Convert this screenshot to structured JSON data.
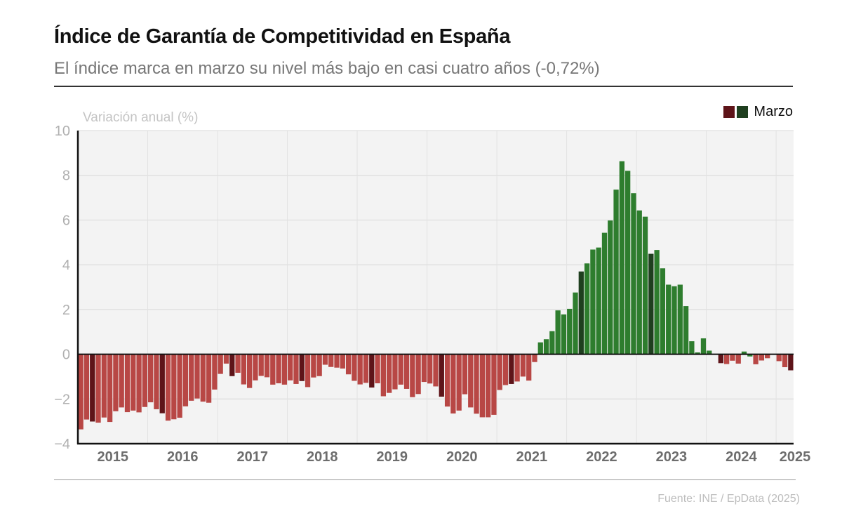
{
  "header": {
    "title": "Índice de Garantía de Competitividad en España",
    "subtitle": "El índice marca en marzo su nivel más bajo en casi cuatro años (-0,72%)"
  },
  "legend": {
    "label": "Marzo",
    "swatch_negative": "#5e1419",
    "swatch_positive": "#1f3f1f"
  },
  "footer": {
    "source": "Fuente: INE / EpData (2025)"
  },
  "colors": {
    "negative": "#b84745",
    "negative_march": "#5e1419",
    "positive": "#2e7d2e",
    "positive_march": "#1f3f1f",
    "plot_bg": "#f3f3f3",
    "grid": "#d8d8d8",
    "tick_label": "#b0b0b0",
    "year_label": "#6d6d6d"
  },
  "chart_data": {
    "type": "bar",
    "title": "Índice de Garantía de Competitividad en España",
    "subtitle": "El índice marca en marzo su nivel más bajo en casi cuatro años (-0,72%)",
    "ylabel": "Variación anual (%)",
    "xlabel": "",
    "ylim": [
      -4,
      10
    ],
    "yticks": [
      10,
      8,
      6,
      4,
      2,
      0,
      -2,
      -4
    ],
    "ytick_labels": [
      "10",
      "8",
      "6",
      "4",
      "2",
      "0",
      "−2",
      "−4"
    ],
    "grid": true,
    "legend": {
      "position": "top-right",
      "entries": [
        "Marzo"
      ]
    },
    "start": "2015-01",
    "frequency": "monthly",
    "highlight_month": 3,
    "year_labels": [
      "2015",
      "2016",
      "2017",
      "2018",
      "2019",
      "2020",
      "2021",
      "2022",
      "2023",
      "2024",
      "2025"
    ],
    "series": [
      {
        "name": "Variación anual (%)",
        "values": [
          -3.36,
          -2.92,
          -3.01,
          -3.06,
          -2.83,
          -3.03,
          -2.55,
          -2.38,
          -2.59,
          -2.52,
          -2.6,
          -2.36,
          -2.15,
          -2.46,
          -2.64,
          -2.97,
          -2.91,
          -2.84,
          -2.33,
          -2.08,
          -1.98,
          -2.12,
          -2.17,
          -1.58,
          -0.88,
          -0.42,
          -0.98,
          -0.83,
          -1.35,
          -1.51,
          -1.17,
          -0.97,
          -1.03,
          -1.36,
          -1.3,
          -1.36,
          -1.17,
          -1.33,
          -1.2,
          -1.47,
          -1.04,
          -0.98,
          -0.47,
          -0.57,
          -0.6,
          -0.64,
          -0.9,
          -1.19,
          -1.35,
          -1.28,
          -1.49,
          -1.3,
          -1.88,
          -1.73,
          -1.57,
          -1.36,
          -1.55,
          -1.92,
          -1.78,
          -1.24,
          -1.31,
          -1.44,
          -1.9,
          -2.34,
          -2.65,
          -2.52,
          -1.79,
          -2.38,
          -2.66,
          -2.82,
          -2.82,
          -2.71,
          -1.6,
          -1.38,
          -1.33,
          -1.22,
          -1.0,
          -1.18,
          -0.35,
          0.53,
          0.67,
          1.03,
          1.96,
          1.78,
          2.03,
          2.76,
          3.7,
          4.06,
          4.68,
          4.77,
          5.43,
          5.98,
          7.36,
          8.63,
          8.2,
          7.2,
          6.43,
          6.15,
          4.49,
          4.66,
          3.84,
          3.11,
          3.04,
          3.11,
          2.15,
          0.58,
          0.08,
          0.71,
          0.16,
          0.0,
          -0.4,
          -0.44,
          -0.29,
          -0.42,
          0.12,
          -0.1,
          -0.45,
          -0.28,
          -0.18,
          0.0,
          -0.31,
          -0.58,
          -0.72
        ]
      }
    ]
  }
}
